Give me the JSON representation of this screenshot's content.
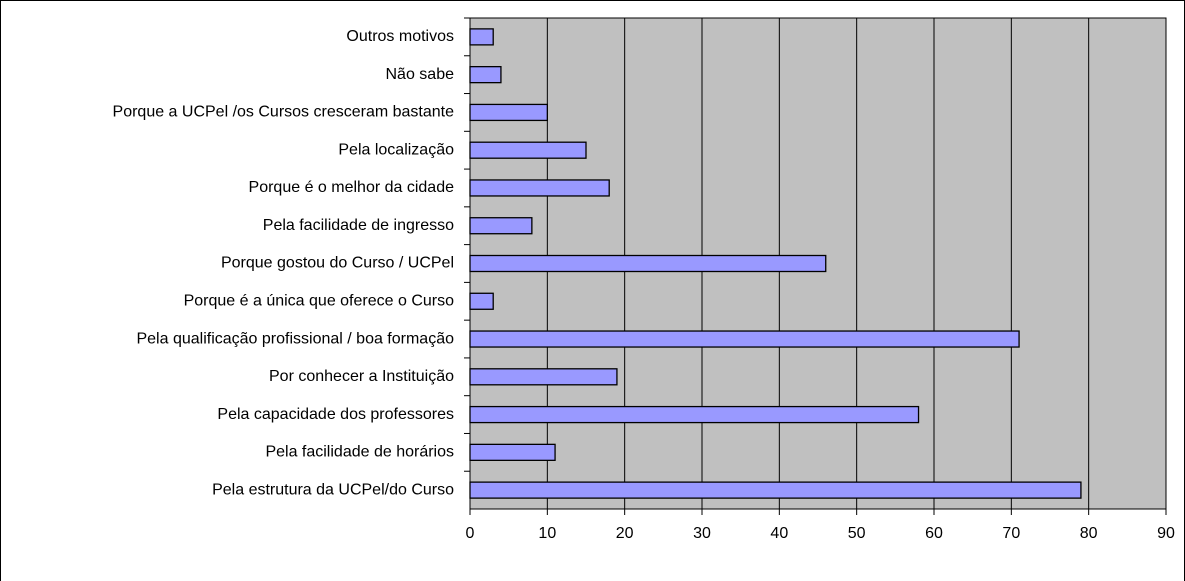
{
  "chart_data": {
    "type": "barh",
    "categories": [
      "Outros motivos",
      "Não sabe",
      "Porque a UCPel /os Cursos cresceram bastante",
      "Pela localização",
      "Porque é o melhor da cidade",
      "Pela facilidade de ingresso",
      "Porque gostou do Curso / UCPel",
      "Porque é a única que oferece o Curso",
      "Pela qualificação profissional /  boa formação",
      "Por conhecer a Instituição",
      "Pela capacidade dos professores",
      "Pela facilidade de horários",
      "Pela estrutura da UCPel/do Curso"
    ],
    "values": [
      3,
      4,
      10,
      15,
      18,
      8,
      46,
      3,
      71,
      19,
      58,
      11,
      79
    ],
    "color": "#9999ff",
    "xlim": [
      0,
      90
    ],
    "xticks": [
      0,
      10,
      20,
      30,
      40,
      50,
      60,
      70,
      80,
      90
    ],
    "grid": true
  }
}
